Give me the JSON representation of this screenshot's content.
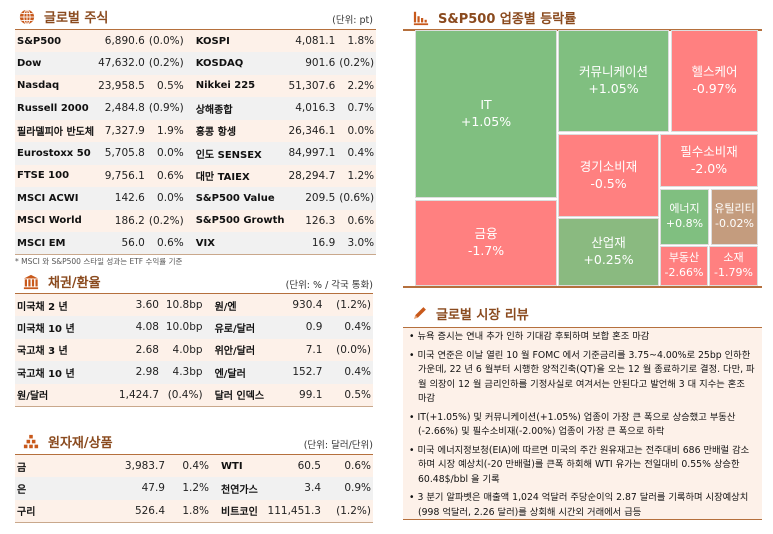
{
  "equity": {
    "title": "글로벌 주식",
    "unit": "(단위: pt)",
    "icon": "globe-icon",
    "rows": [
      [
        "S&P500",
        "6,890.6",
        "(0.0%)",
        "KOSPI",
        "4,081.1",
        "1.8%"
      ],
      [
        "Dow",
        "47,632.0",
        "(0.2%)",
        "KOSDAQ",
        "901.6",
        "(0.2%)"
      ],
      [
        "Nasdaq",
        "23,958.5",
        "0.5%",
        "Nikkei 225",
        "51,307.6",
        "2.2%"
      ],
      [
        "Russell 2000",
        "2,484.8",
        "(0.9%)",
        "상해종합",
        "4,016.3",
        "0.7%"
      ],
      [
        "필라델피아 반도체",
        "7,327.9",
        "1.9%",
        "홍콩 항셍",
        "26,346.1",
        "0.0%"
      ],
      [
        "Eurostoxx 50",
        "5,705.8",
        "0.0%",
        "인도 SENSEX",
        "84,997.1",
        "0.4%"
      ],
      [
        "FTSE 100",
        "9,756.1",
        "0.6%",
        "대만 TAIEX",
        "28,294.7",
        "1.2%"
      ],
      [
        "MSCI ACWI",
        "142.6",
        "0.0%",
        "S&P500 Value",
        "209.5",
        "(0.6%)"
      ],
      [
        "MSCI World",
        "186.2",
        "(0.2%)",
        "S&P500 Growth",
        "126.3",
        "0.6%"
      ],
      [
        "MSCI EM",
        "56.0",
        "0.6%",
        "VIX",
        "16.9",
        "3.0%"
      ]
    ],
    "footnote": "* MSCI 와 S&P500 스타일 성과는 ETF 수익률 기준"
  },
  "bonds": {
    "title": "채권/환율",
    "unit": "(단위: % / 각국 통화)",
    "icon": "bank-icon",
    "rows": [
      [
        "미국채 2 년",
        "3.60",
        "10.8bp",
        "원/엔",
        "930.4",
        "(1.2%)"
      ],
      [
        "미국채 10 년",
        "4.08",
        "10.0bp",
        "유로/달러",
        "0.9",
        "0.4%"
      ],
      [
        "국고채 3 년",
        "2.68",
        "4.0bp",
        "위안/달러",
        "7.1",
        "(0.0%)"
      ],
      [
        "국고채 10 년",
        "2.98",
        "4.3bp",
        "엔/달러",
        "152.7",
        "0.4%"
      ],
      [
        "원/달러",
        "1,424.7",
        "(0.4%)",
        "달러 인덱스",
        "99.1",
        "0.5%"
      ]
    ]
  },
  "commodities": {
    "title": "원자재/상품",
    "unit": "(단위: 달러/단위)",
    "icon": "gold-bars-icon",
    "rows": [
      [
        "금",
        "3,983.7",
        "0.4%",
        "WTI",
        "60.5",
        "0.6%"
      ],
      [
        "은",
        "47.9",
        "1.2%",
        "천연가스",
        "3.4",
        "0.9%"
      ],
      [
        "구리",
        "526.4",
        "1.8%",
        "비트코인",
        "111,451.3",
        "(1.2%)"
      ]
    ]
  },
  "sectors": {
    "title": "S&P500 업종별 등락률",
    "icon": "bar-chart-icon",
    "colors": {
      "up": "#80bf80",
      "down": "#ff8080",
      "flat_up": "#8aba80",
      "flat_down": "#c49c7e"
    },
    "items": [
      {
        "name": "IT",
        "value": "+1.05%"
      },
      {
        "name": "금융",
        "value": "-1.7%"
      },
      {
        "name": "커뮤니케이션",
        "value": "+1.05%"
      },
      {
        "name": "헬스케어",
        "value": "-0.97%"
      },
      {
        "name": "경기소비재",
        "value": "-0.5%"
      },
      {
        "name": "산업재",
        "value": "+0.25%"
      },
      {
        "name": "필수소비재",
        "value": "-2.0%"
      },
      {
        "name": "에너지",
        "value": "+0.8%"
      },
      {
        "name": "유틸리티",
        "value": "-0.02%"
      },
      {
        "name": "부동산",
        "value": "-2.66%"
      },
      {
        "name": "소재",
        "value": "-1.79%"
      }
    ]
  },
  "review": {
    "title": "글로벌 시장 리뷰",
    "icon": "pencil-icon",
    "items": [
      "뉴욕 증시는 연내 추가 인하 기대감 후퇴하며 보합 혼조 마감",
      "미국 연준은 이날 열린 10 월 FOMC 에서 기준금리를 3.75~4.00%로 25bp 인하한 가운데, 22 년 6 월부터 시행한 양적긴축(QT)을 오는 12 월 종료하기로 결정. 다만, 파월 의장이 12 월 금리인하를 기정사실로 여겨서는 안된다고 발언해 3 대 지수는 혼조 마감",
      "IT(+1.05%) 및 커뮤니케이션(+1.05%) 업종이 가장 큰 폭으로 상승했고 부동산(-2.66%) 및 필수소비재(-2.00%) 업종이 가장 큰 폭으로 하락",
      "미국 에너지정보청(EIA)에 따르면 미국의 주간 원유재고는 전주대비 686 만배럴 감소하며 시장 예상치(-20 만배럴)를 큰폭 하회해 WTI 유가는 전일대비 0.55% 상승한 60.48$/bbl 을 기록",
      "3 분기 알파벳은 매출액 1,024 억달러 주당순이익 2.87 달러를 기록하며 시장예상치(998 억달러, 2.26 달러)를 상회해 시간외 거래에서 급등"
    ]
  }
}
